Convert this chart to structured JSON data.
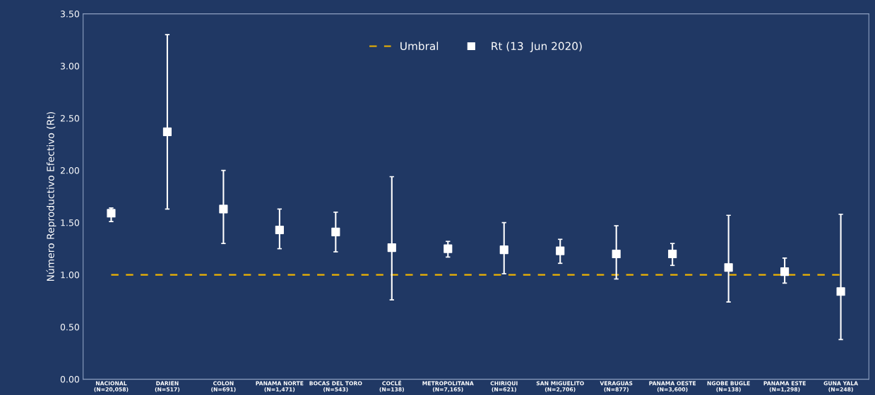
{
  "chart_data": {
    "type": "scatter",
    "categories": [
      "NACIONAL\n(N=20,058)",
      "DARIEN\n(N=517)",
      "COLON\n(N=691)",
      "PANAMA NORTE\n(N=1,471)",
      "BOCAS DEL TORO\n(N=543)",
      "COCLÉ\n(N=138)",
      "METROPOLITANA\n(N=7,165)",
      "CHIRIQUI\n(N=621)",
      "SAN MIGUELITO\n(N=2,706)",
      "VERAGUAS\n(N=877)",
      "PANAMA OESTE\n(N=3,600)",
      "NGOBE BUGLE\n(N=138)",
      "PANAMA ESTE\n(N=1,298)",
      "GUNA YALA\n(N=248)"
    ],
    "series": [
      {
        "name": "Rt (13  Jun 2020)",
        "color": "#ffffff",
        "values": [
          1.59,
          2.37,
          1.63,
          1.43,
          1.41,
          1.26,
          1.25,
          1.24,
          1.23,
          1.2,
          1.2,
          1.07,
          1.03,
          0.84
        ],
        "errors": [
          [
            1.51,
            1.64
          ],
          [
            1.63,
            3.3
          ],
          [
            1.3,
            2.0
          ],
          [
            1.25,
            1.63
          ],
          [
            1.22,
            1.6
          ],
          [
            0.76,
            1.94
          ],
          [
            1.17,
            1.32
          ],
          [
            1.01,
            1.5
          ],
          [
            1.11,
            1.34
          ],
          [
            0.96,
            1.47
          ],
          [
            1.09,
            1.3
          ],
          [
            0.74,
            1.57
          ],
          [
            0.92,
            1.16
          ],
          [
            0.38,
            1.58
          ]
        ]
      }
    ],
    "ylabel": "Número Reproductivo Efectivo (Rt)",
    "ylim": [
      0,
      3.5
    ],
    "yticks": [
      {
        "value": 0,
        "label": "0.00"
      },
      {
        "value": 0.5,
        "label": "0.50"
      },
      {
        "value": 1,
        "label": "1.00"
      },
      {
        "value": 1.5,
        "label": "1.50"
      },
      {
        "value": 2,
        "label": "2.00"
      },
      {
        "value": 2.5,
        "label": "2.50"
      },
      {
        "value": 3,
        "label": "3.00"
      },
      {
        "value": 3.5,
        "label": "3.50"
      }
    ],
    "ref_lines": [
      {
        "axis": "y",
        "value": 1,
        "label": "Umbral",
        "color": "#f0b400",
        "line_style": "dashed"
      }
    ],
    "marker": "square",
    "grid": false,
    "legend": "top"
  }
}
